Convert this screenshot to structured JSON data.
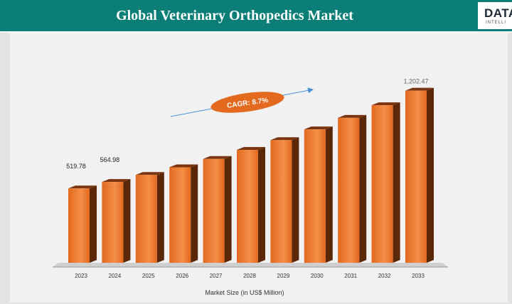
{
  "header": {
    "title": "Global Veterinary Orthopedics Market",
    "logo_text": "DATA",
    "logo_sub": "INTELLI"
  },
  "colors": {
    "header_bg": "#0b7e78",
    "bar_front": "#e2691e",
    "bar_highlight": "#f58f48",
    "bar_side": "#5a2708",
    "cagr_fill": "#e2691e",
    "arrow": "#4a90d9"
  },
  "chart_data": {
    "type": "bar",
    "title": "",
    "xlabel": "Market Size (in US$ Million)",
    "ylabel": "",
    "categories": [
      "2023",
      "2024",
      "2025",
      "2026",
      "2027",
      "2028",
      "2029",
      "2030",
      "2031",
      "2032",
      "2033"
    ],
    "values": [
      519.78,
      564.98,
      614.1,
      667.5,
      725.6,
      788.7,
      857.3,
      931.9,
      1013.0,
      1101.1,
      1202.47
    ],
    "ylim": [
      0,
      1300
    ],
    "data_labels": [
      {
        "category": "2023",
        "text": "519.78"
      },
      {
        "category": "2024",
        "text": "564.98"
      },
      {
        "category": "2033",
        "text": "1,202.47"
      }
    ],
    "annotation": "CAGR: 8.7%",
    "grid": false
  }
}
